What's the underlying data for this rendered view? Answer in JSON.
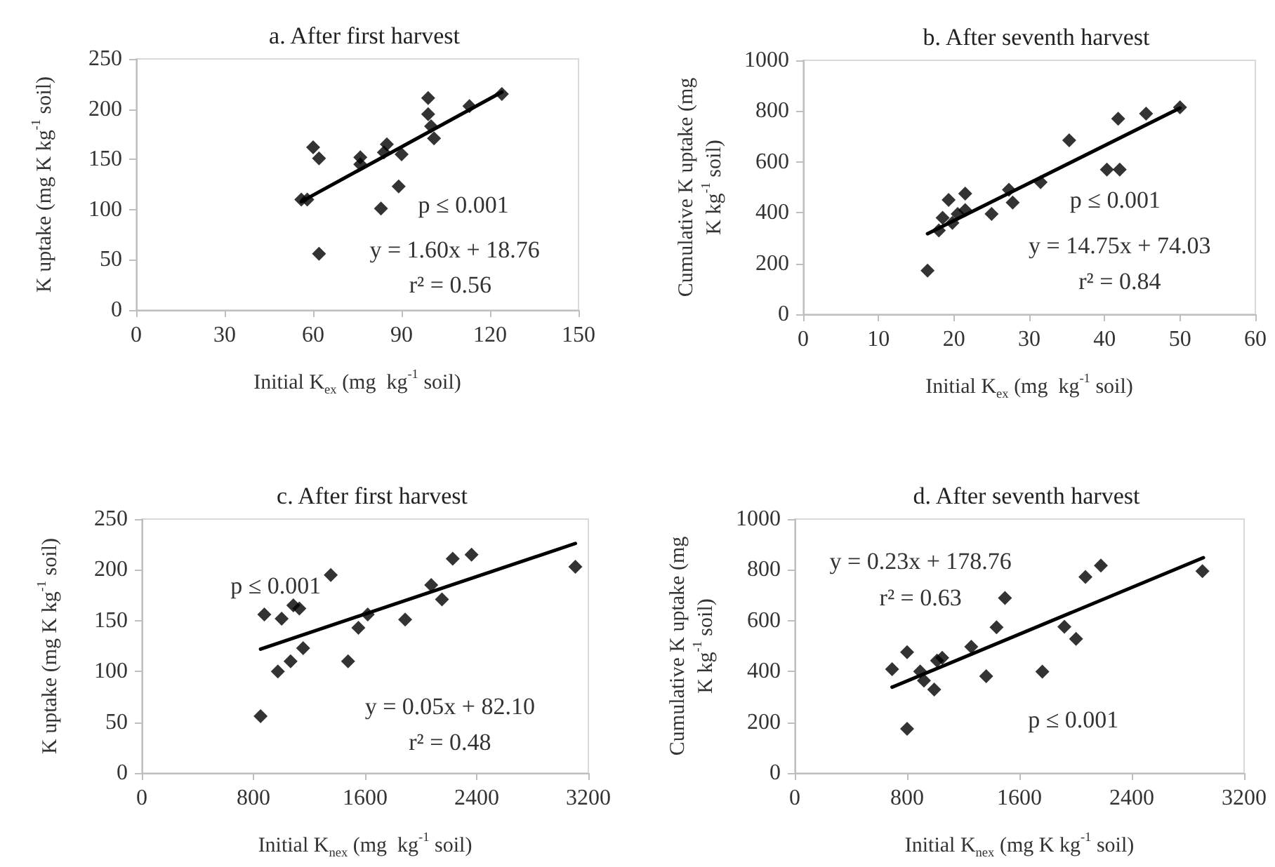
{
  "chart_data": [
    {
      "type": "scatter",
      "title": "a. After first harvest",
      "xlabel": "Initial K$_{ex}$ (mg  kg$^{-1}$ soil)",
      "ylabel": "K uptake (mg K kg$^{-1}$ soil)",
      "xlim": [
        0,
        150
      ],
      "xticks": [
        0,
        30,
        60,
        90,
        120,
        150
      ],
      "ylim": [
        0,
        250
      ],
      "yticks": [
        0,
        50,
        100,
        150,
        200,
        250
      ],
      "marker": "diamond",
      "grid": false,
      "series": [
        {
          "color": "#000000",
          "x": [
            56,
            58,
            60,
            62,
            62,
            76,
            76,
            83,
            84,
            85,
            89,
            90,
            99,
            99,
            100,
            101,
            113,
            124
          ],
          "values": [
            110,
            110,
            162,
            151,
            56,
            152,
            145,
            101,
            157,
            165,
            123,
            155,
            211,
            195,
            183,
            171,
            203,
            215
          ]
        },
        {
          "type": "line",
          "color": "#000000",
          "marker": "none",
          "x": [
            56,
            124
          ],
          "values": [
            108,
            217
          ]
        }
      ],
      "annotations": [
        "p ≤ 0.001",
        "y = 1.60x + 18.76",
        "r² = 0.56"
      ]
    },
    {
      "type": "scatter",
      "title": "b. After seventh harvest",
      "xlabel": "Initial K$_{ex}$ (mg  kg$^{-1}$ soil)",
      "ylabel": "Cumulative K uptake (mg K kg$^{-1}$ soil)",
      "xlim": [
        0,
        60
      ],
      "xticks": [
        0,
        10,
        20,
        30,
        40,
        50,
        60
      ],
      "ylim": [
        0,
        1000
      ],
      "yticks": [
        0,
        200,
        400,
        600,
        800,
        1000
      ],
      "marker": "diamond",
      "grid": false,
      "series": [
        {
          "color": "#000000",
          "x": [
            16.5,
            18,
            18.5,
            19.3,
            19.8,
            20.5,
            21.5,
            21.5,
            25,
            27.3,
            27.8,
            31.5,
            35.3,
            40.3,
            42,
            41.8,
            45.5,
            50
          ],
          "values": [
            172,
            330,
            380,
            450,
            360,
            395,
            475,
            410,
            395,
            490,
            440,
            520,
            685,
            570,
            570,
            770,
            790,
            815
          ]
        },
        {
          "type": "line",
          "color": "#000000",
          "marker": "none",
          "x": [
            16.5,
            50
          ],
          "values": [
            317,
            812
          ]
        }
      ],
      "annotations": [
        "p ≤ 0.001",
        "y = 14.75x + 74.03",
        "r² = 0.84"
      ]
    },
    {
      "type": "scatter",
      "title": "c. After first harvest",
      "xlabel": "Initial K$_{nex}$ (mg  kg$^{-1}$ soil)",
      "ylabel": "K uptake (mg K kg$^{-1}$ soil)",
      "xlim": [
        0,
        3200
      ],
      "xticks": [
        0,
        800,
        1600,
        2400,
        3200
      ],
      "ylim": [
        0,
        250
      ],
      "yticks": [
        0,
        50,
        100,
        150,
        200,
        250
      ],
      "marker": "diamond",
      "grid": false,
      "series": [
        {
          "color": "#000000",
          "x": [
            851,
            878,
            1002,
            975,
            1066,
            1086,
            1129,
            1156,
            1354,
            1478,
            1552,
            1619,
            1887,
            2074,
            2151,
            2228,
            2363,
            3107
          ],
          "values": [
            56,
            156,
            152,
            100,
            110,
            165,
            162,
            123,
            195,
            110,
            143,
            156,
            151,
            185,
            171,
            211,
            215,
            203
          ]
        },
        {
          "type": "line",
          "color": "#000000",
          "marker": "none",
          "x": [
            851,
            3107
          ],
          "values": [
            122,
            226
          ]
        }
      ],
      "annotations": [
        "p ≤ 0.001",
        "y = 0.05x + 82.10",
        "r² = 0.48"
      ]
    },
    {
      "type": "scatter",
      "title": "d. After seventh harvest",
      "xlabel": "Initial K$_{nex}$ (mg K kg$^{-1}$ soil)",
      "ylabel": "Cumulative K uptake (mg K kg$^{-1}$ soil)",
      "xlim": [
        0,
        3200
      ],
      "xticks": [
        0,
        800,
        1600,
        2400,
        3200
      ],
      "ylim": [
        0,
        1000
      ],
      "yticks": [
        0,
        200,
        400,
        600,
        800,
        1000
      ],
      "marker": "diamond",
      "grid": false,
      "series": [
        {
          "color": "#000000",
          "x": [
            693,
            800,
            800,
            893,
            920,
            993,
            1013,
            1050,
            1257,
            1363,
            1437,
            1497,
            1763,
            1920,
            2003,
            2070,
            2180,
            2903
          ],
          "values": [
            409,
            476,
            174,
            400,
            364,
            329,
            443,
            454,
            497,
            381,
            574,
            689,
            399,
            576,
            528,
            772,
            817,
            795
          ]
        },
        {
          "type": "line",
          "color": "#000000",
          "marker": "none",
          "x": [
            693,
            2910
          ],
          "values": [
            338,
            848
          ]
        }
      ],
      "annotations": [
        "y = 0.23x + 178.76",
        "r² = 0.63",
        "p ≤ 0.001"
      ]
    }
  ]
}
